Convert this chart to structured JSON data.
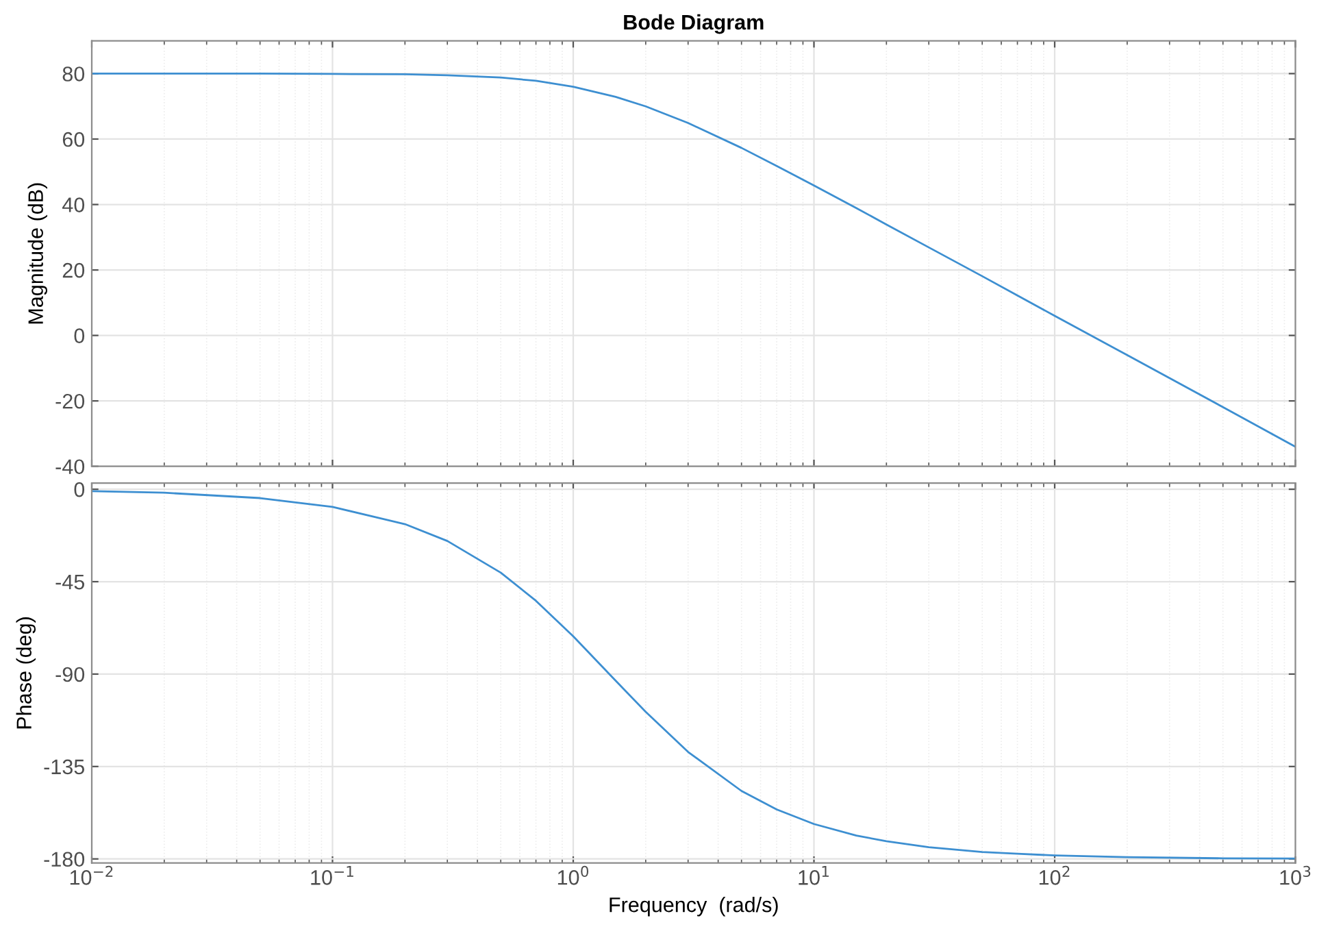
{
  "chart_data": [
    {
      "type": "line",
      "title": "Bode Diagram",
      "ylabel": "Magnitude (dB)",
      "log": "x",
      "grid": true,
      "tick_labels": "y",
      "xlim": [
        0.01,
        1000
      ],
      "ylim": [
        -40,
        90
      ],
      "yticks": [
        -40,
        -20,
        0,
        20,
        40,
        60,
        80
      ],
      "x": [
        0.01,
        0.02,
        0.05,
        0.1,
        0.2,
        0.3,
        0.5,
        0.7,
        1,
        1.5,
        2,
        3,
        5,
        7,
        10,
        15,
        20,
        30,
        50,
        70,
        100,
        200,
        500,
        1000
      ],
      "series": [
        {
          "color": "#3d8fd1",
          "values": [
            80.0,
            80.0,
            80.0,
            79.9,
            79.8,
            79.5,
            78.8,
            77.8,
            76.0,
            72.9,
            70.0,
            64.9,
            57.3,
            51.8,
            45.8,
            38.9,
            33.9,
            26.9,
            18.1,
            12.2,
            6.0,
            -6.0,
            -21.9,
            -34.0
          ]
        }
      ]
    },
    {
      "type": "line",
      "xlabel": "Frequency  (rad/s)",
      "ylabel": "Phase (deg)",
      "log": "x",
      "grid": true,
      "xlim": [
        0.01,
        1000
      ],
      "ylim": [
        -182,
        3
      ],
      "yticks": [
        -180,
        -135,
        -90,
        -45,
        0
      ],
      "xticks": [
        {
          "value": 0.01,
          "label": "10$^{−2}$"
        },
        {
          "value": 0.1,
          "label": "10$^{−1}$"
        },
        {
          "value": 1,
          "label": "10$^{0}$"
        },
        {
          "value": 10,
          "label": "10$^{1}$"
        },
        {
          "value": 100,
          "label": "10$^{2}$"
        },
        {
          "value": 1000,
          "label": "10$^{3}$"
        }
      ],
      "x": [
        0.01,
        0.02,
        0.05,
        0.1,
        0.2,
        0.3,
        0.5,
        0.7,
        1,
        1.5,
        2,
        3,
        5,
        7,
        10,
        15,
        20,
        30,
        50,
        70,
        100,
        200,
        500,
        1000
      ],
      "series": [
        {
          "color": "#3d8fd1",
          "values": [
            -0.9,
            -1.7,
            -4.3,
            -8.6,
            -17.0,
            -25.2,
            -40.6,
            -54.3,
            -71.6,
            -93.2,
            -108.4,
            -127.9,
            -146.9,
            -155.9,
            -163.0,
            -168.6,
            -171.4,
            -174.3,
            -176.6,
            -177.5,
            -178.3,
            -179.1,
            -179.7,
            -179.8
          ]
        }
      ]
    }
  ]
}
